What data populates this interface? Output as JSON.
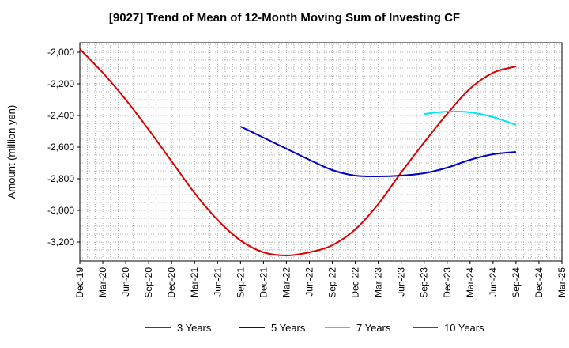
{
  "chart_data": {
    "type": "line",
    "title": "[9027]  Trend of Mean of 12-Month Moving Sum of Investing CF",
    "xlabel": "",
    "ylabel": "Amount (million yen)",
    "ylim": [
      -3320,
      -1940
    ],
    "yticks": [
      -2000,
      -2200,
      -2400,
      -2600,
      -2800,
      -3000,
      -3200
    ],
    "ytick_labels": [
      "-2,000",
      "-2,200",
      "-2,400",
      "-2,600",
      "-2,800",
      "-3,000",
      "-3,200"
    ],
    "xticks": [
      "Dec-19",
      "Mar-20",
      "Jun-20",
      "Sep-20",
      "Dec-20",
      "Mar-21",
      "Jun-21",
      "Sep-21",
      "Dec-21",
      "Mar-22",
      "Jun-22",
      "Sep-22",
      "Dec-22",
      "Mar-23",
      "Jun-23",
      "Sep-23",
      "Dec-23",
      "Mar-24",
      "Jun-24",
      "Sep-24",
      "Dec-24",
      "Mar-25"
    ],
    "grid": true,
    "legend_position": "bottom",
    "series": [
      {
        "name": "3 Years",
        "color": "#dd0000",
        "x": [
          "Dec-19",
          "Mar-20",
          "Jun-20",
          "Sep-20",
          "Dec-20",
          "Mar-21",
          "Jun-21",
          "Sep-21",
          "Dec-21",
          "Mar-22",
          "Jun-22",
          "Sep-22",
          "Dec-22",
          "Mar-23",
          "Jun-23",
          "Sep-23",
          "Dec-23",
          "Mar-24",
          "Jun-24",
          "Sep-24"
        ],
        "y": [
          -1980,
          -2130,
          -2300,
          -2490,
          -2690,
          -2890,
          -3060,
          -3190,
          -3265,
          -3285,
          -3265,
          -3220,
          -3120,
          -2960,
          -2760,
          -2570,
          -2390,
          -2230,
          -2130,
          -2090
        ]
      },
      {
        "name": "5 Years",
        "color": "#0000cc",
        "x": [
          "Sep-21",
          "Dec-21",
          "Mar-22",
          "Jun-22",
          "Sep-22",
          "Dec-22",
          "Mar-23",
          "Jun-23",
          "Sep-23",
          "Dec-23",
          "Mar-24",
          "Jun-24",
          "Sep-24"
        ],
        "y": [
          -2470,
          -2540,
          -2610,
          -2680,
          -2745,
          -2780,
          -2785,
          -2780,
          -2765,
          -2730,
          -2680,
          -2645,
          -2630
        ]
      },
      {
        "name": "7 Years",
        "color": "#00e5ee",
        "x": [
          "Sep-23",
          "Dec-23",
          "Mar-24",
          "Jun-24",
          "Sep-24"
        ],
        "y": [
          -2390,
          -2375,
          -2380,
          -2410,
          -2460
        ]
      },
      {
        "name": "10 Years",
        "color": "#008000",
        "x": [],
        "y": []
      }
    ]
  }
}
